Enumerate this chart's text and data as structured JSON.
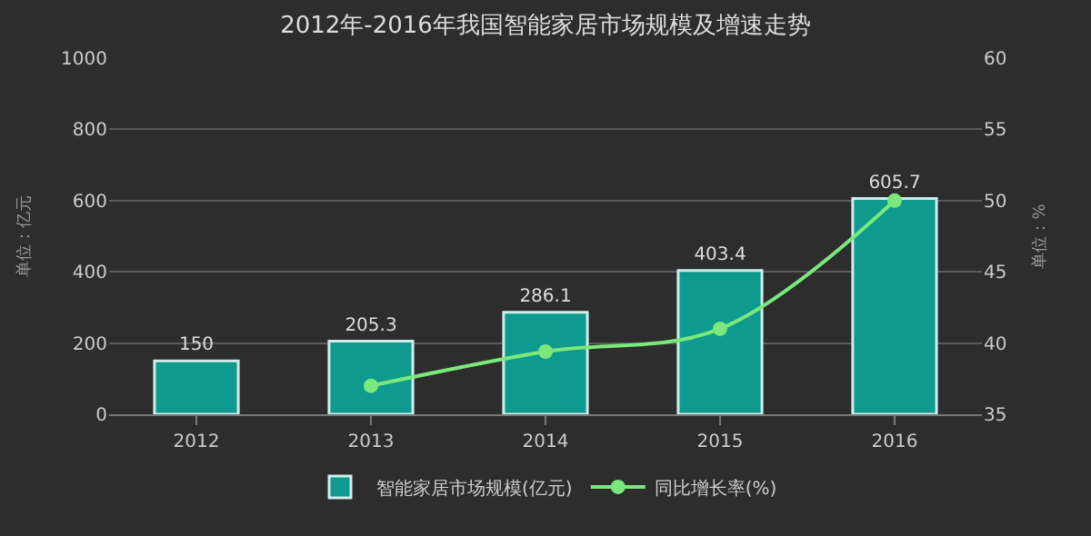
{
  "chart_data": {
    "type": "bar",
    "title": "2012年-2016年我国智能家居市场规模及增速走势",
    "categories": [
      "2012",
      "2013",
      "2014",
      "2015",
      "2016"
    ],
    "series": [
      {
        "name": "智能家居市场规模(亿元)",
        "color": "#0e9a8e",
        "values": [
          150,
          205.3,
          286.1,
          403.4,
          605.7
        ],
        "value_labels": [
          "150",
          "205.3",
          "286.1",
          "403.4",
          "605.7"
        ]
      },
      {
        "name": "同比增长率(%)",
        "type": "line",
        "axis": "y2",
        "color": "#7ae87a",
        "values": [
          null,
          37.0,
          39.4,
          41.0,
          50.0
        ]
      }
    ],
    "ylabel": "单位：亿元",
    "y2label": "单位：%",
    "ylim": [
      0,
      1000
    ],
    "yticks": [
      0,
      200,
      400,
      600,
      800,
      1000
    ],
    "y2lim": [
      35,
      60
    ],
    "y2ticks": [
      35,
      40,
      45,
      50,
      55,
      60
    ],
    "grid": "y",
    "legend": "bottom",
    "marker": "circle"
  }
}
